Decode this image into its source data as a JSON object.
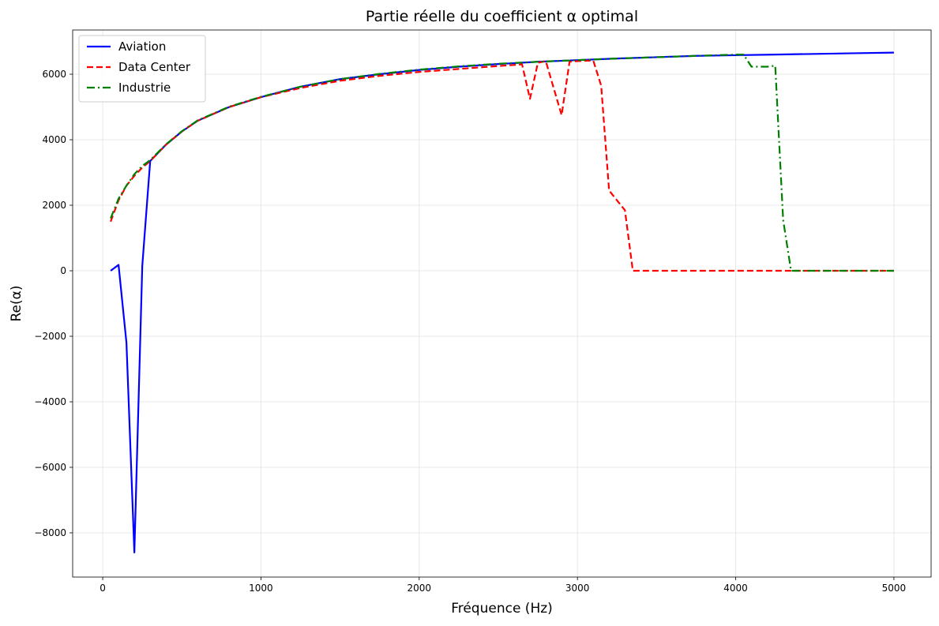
{
  "chart_data": {
    "type": "line",
    "title": "Partie réelle du coefficient α optimal",
    "xlabel": "Fréquence (Hz)",
    "ylabel": "Re(α)",
    "xlim": [
      -190,
      5235
    ],
    "ylim": [
      -9350,
      7350
    ],
    "x_ticks": [
      0,
      1000,
      2000,
      3000,
      4000,
      5000
    ],
    "x_tick_labels": [
      "0",
      "1000",
      "2000",
      "3000",
      "4000",
      "5000"
    ],
    "y_ticks": [
      -8000,
      -6000,
      -4000,
      -2000,
      0,
      2000,
      4000,
      6000
    ],
    "y_tick_labels": [
      "−8000",
      "−6000",
      "−4000",
      "−2000",
      "0",
      "2000",
      "4000",
      "6000"
    ],
    "grid": true,
    "legend_position": "top-left",
    "series": [
      {
        "name": "Aviation",
        "color": "#0000ff",
        "dash": "solid",
        "x": [
          50,
          100,
          150,
          200,
          250,
          300,
          400,
          500,
          600,
          800,
          1000,
          1250,
          1500,
          1750,
          2000,
          2250,
          2500,
          2750,
          3000,
          3250,
          3500,
          3750,
          4000,
          4250,
          4500,
          4750,
          5000
        ],
        "y": [
          0,
          180,
          -2200,
          -8600,
          150,
          3350,
          3850,
          4250,
          4580,
          5000,
          5300,
          5620,
          5850,
          6000,
          6130,
          6230,
          6310,
          6380,
          6430,
          6480,
          6520,
          6560,
          6580,
          6600,
          6620,
          6640,
          6660
        ]
      },
      {
        "name": "Data Center",
        "color": "#ff0000",
        "dash": "dashed",
        "x": [
          50,
          100,
          150,
          200,
          250,
          300,
          400,
          500,
          600,
          800,
          1000,
          1250,
          1500,
          1750,
          2000,
          2250,
          2500,
          2650,
          2700,
          2750,
          2800,
          2900,
          2950,
          3000,
          3100,
          3150,
          3200,
          3300,
          3350,
          3500,
          4000,
          4500,
          5000
        ],
        "y": [
          1500,
          2150,
          2600,
          2900,
          3150,
          3350,
          3850,
          4250,
          4580,
          5000,
          5300,
          5580,
          5800,
          5950,
          6070,
          6160,
          6250,
          6300,
          5250,
          6350,
          6400,
          4750,
          6380,
          6400,
          6420,
          5650,
          2450,
          1850,
          0,
          0,
          0,
          0,
          0
        ]
      },
      {
        "name": "Industrie",
        "color": "#008000",
        "dash": "dashdot",
        "x": [
          50,
          100,
          150,
          200,
          250,
          300,
          400,
          500,
          600,
          800,
          1000,
          1250,
          1500,
          1750,
          2000,
          2250,
          2500,
          2750,
          3000,
          3250,
          3500,
          3750,
          4000,
          4050,
          4100,
          4150,
          4200,
          4250,
          4300,
          4350,
          4500,
          4750,
          5000
        ],
        "y": [
          1600,
          2200,
          2600,
          2950,
          3200,
          3380,
          3860,
          4260,
          4590,
          5010,
          5310,
          5620,
          5850,
          6010,
          6140,
          6240,
          6320,
          6380,
          6430,
          6480,
          6520,
          6560,
          6600,
          6600,
          6230,
          6230,
          6230,
          6260,
          1550,
          0,
          0,
          0,
          0
        ]
      }
    ]
  }
}
